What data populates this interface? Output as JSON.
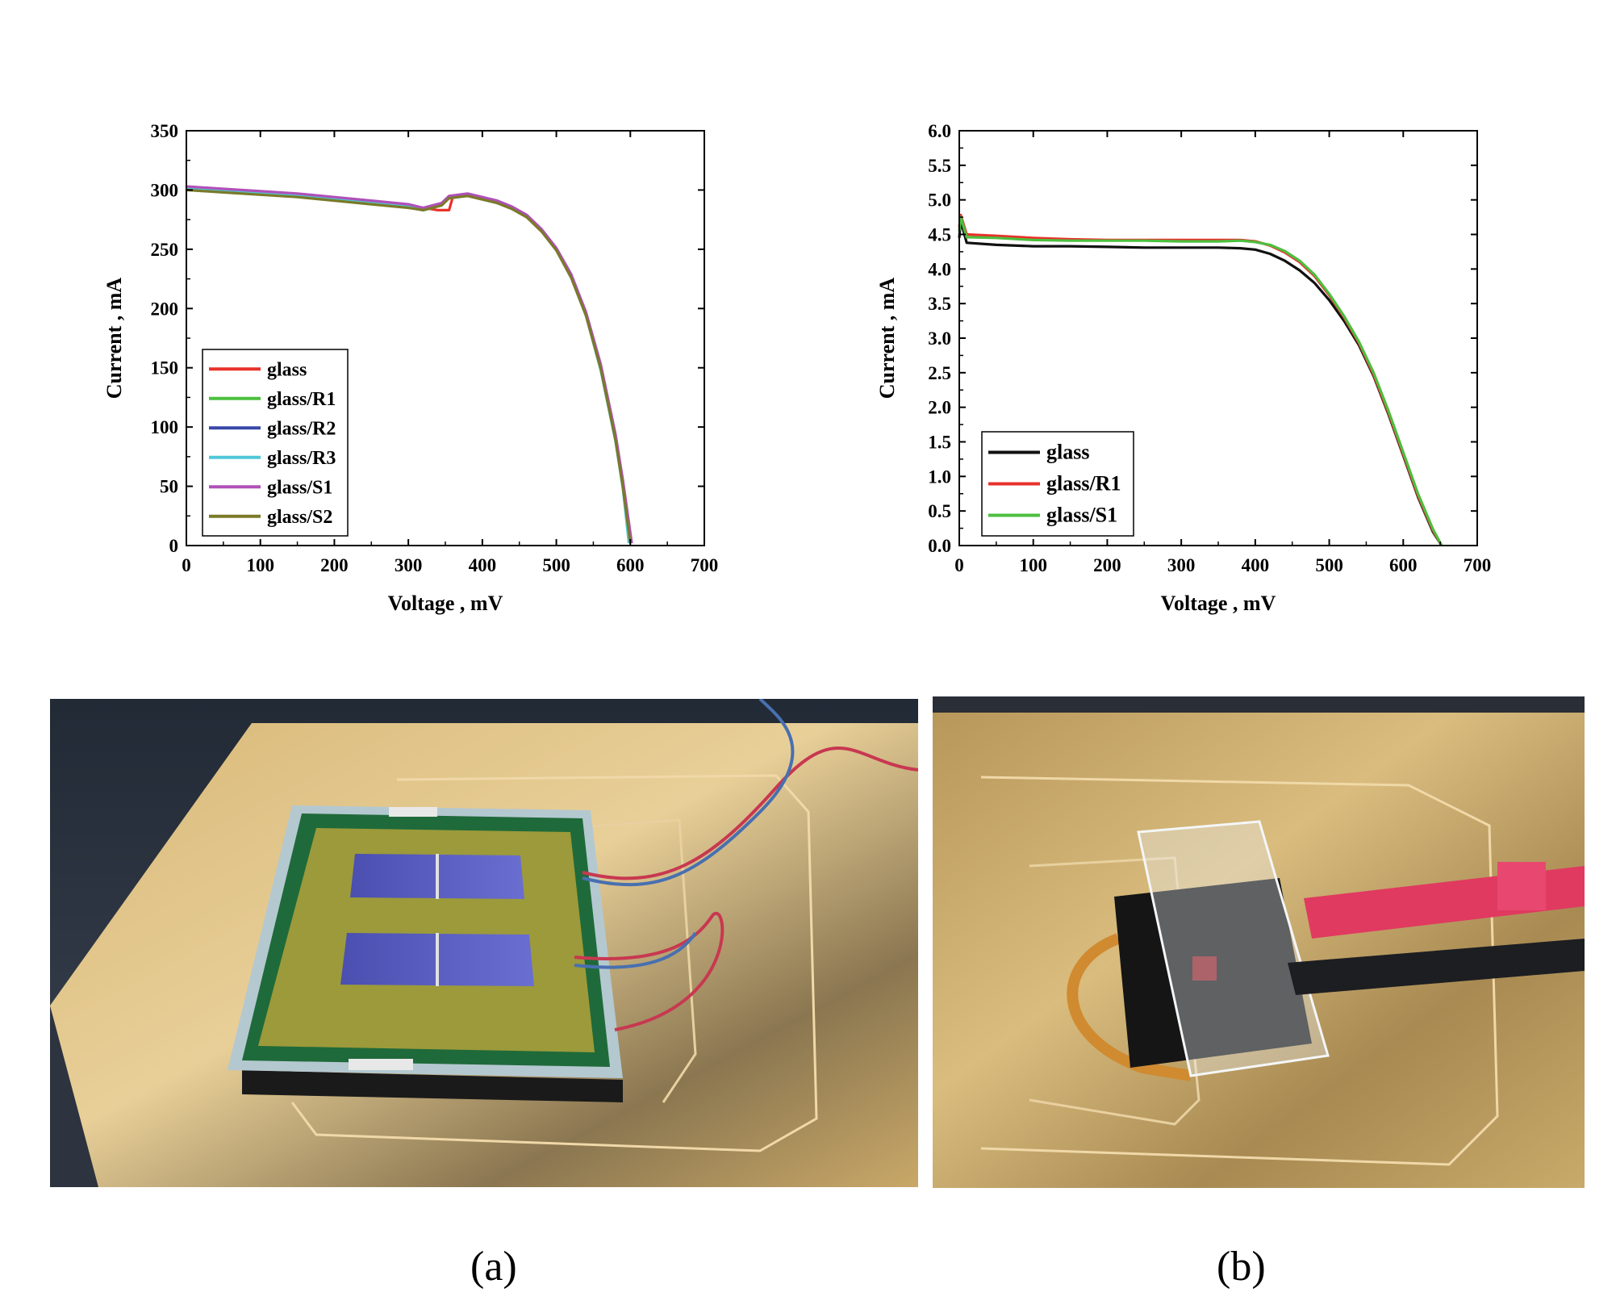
{
  "chart_data": [
    {
      "type": "line",
      "xlabel": "Voltage , mV",
      "ylabel": "Current , mA",
      "xlim": [
        0,
        700
      ],
      "ylim": [
        0,
        350
      ],
      "x_ticks": [
        "0",
        "100",
        "200",
        "300",
        "400",
        "500",
        "600",
        "700"
      ],
      "y_ticks": [
        "0",
        "50",
        "100",
        "150",
        "200",
        "250",
        "300",
        "350"
      ],
      "grid": false,
      "legend_position": "bottom-left",
      "series": [
        {
          "name": "glass",
          "color": "#e8312a",
          "x": [
            0,
            50,
            100,
            150,
            200,
            250,
            300,
            340,
            355,
            360,
            380,
            400,
            420,
            440,
            460,
            480,
            500,
            520,
            540,
            560,
            580,
            590,
            600
          ],
          "y": [
            301,
            300,
            298,
            296,
            293,
            290,
            287,
            283,
            283,
            294,
            296,
            293,
            290,
            285,
            278,
            266,
            250,
            227,
            195,
            150,
            90,
            50,
            2
          ]
        },
        {
          "name": "glass/R1",
          "color": "#4cbf3f",
          "x": [
            0,
            50,
            100,
            150,
            200,
            250,
            300,
            320,
            345,
            355,
            380,
            400,
            420,
            440,
            460,
            480,
            500,
            520,
            540,
            560,
            580,
            590,
            600
          ],
          "y": [
            300,
            299,
            297,
            295,
            292,
            289,
            286,
            283,
            287,
            294,
            296,
            293,
            290,
            285,
            278,
            266,
            250,
            227,
            195,
            150,
            90,
            50,
            2
          ]
        },
        {
          "name": "glass/R2",
          "color": "#3848a8",
          "x": [
            0,
            50,
            100,
            150,
            200,
            250,
            300,
            320,
            345,
            355,
            380,
            400,
            420,
            440,
            460,
            480,
            500,
            520,
            540,
            560,
            580,
            590,
            600
          ],
          "y": [
            302,
            300,
            298,
            295,
            292,
            289,
            286,
            284,
            288,
            294,
            296,
            293,
            290,
            285,
            278,
            266,
            250,
            227,
            195,
            150,
            90,
            50,
            2
          ]
        },
        {
          "name": "glass/R3",
          "color": "#4ec8d8",
          "x": [
            0,
            50,
            100,
            150,
            200,
            250,
            300,
            320,
            345,
            355,
            380,
            400,
            420,
            440,
            460,
            480,
            500,
            520,
            540,
            560,
            580,
            590,
            598
          ],
          "y": [
            301,
            300,
            298,
            295,
            292,
            289,
            286,
            283,
            287,
            294,
            296,
            293,
            290,
            285,
            278,
            266,
            250,
            227,
            194,
            148,
            88,
            48,
            2
          ]
        },
        {
          "name": "glass/S1",
          "color": "#b050b8",
          "x": [
            0,
            50,
            100,
            150,
            200,
            250,
            300,
            320,
            345,
            355,
            380,
            400,
            420,
            440,
            460,
            480,
            500,
            520,
            540,
            560,
            580,
            590,
            602
          ],
          "y": [
            303,
            301,
            299,
            297,
            294,
            291,
            288,
            285,
            289,
            295,
            297,
            294,
            291,
            286,
            279,
            267,
            251,
            229,
            197,
            153,
            94,
            55,
            2
          ]
        },
        {
          "name": "glass/S2",
          "color": "#7a7a28",
          "x": [
            0,
            50,
            100,
            150,
            200,
            250,
            300,
            320,
            345,
            355,
            380,
            400,
            420,
            440,
            460,
            480,
            500,
            520,
            540,
            560,
            580,
            590,
            600
          ],
          "y": [
            300,
            298,
            296,
            294,
            291,
            288,
            285,
            283,
            287,
            293,
            295,
            292,
            289,
            284,
            277,
            265,
            249,
            226,
            194,
            149,
            89,
            49,
            2
          ]
        }
      ]
    },
    {
      "type": "line",
      "xlabel": "Voltage , mV",
      "ylabel": "Current , mA",
      "xlim": [
        0,
        700
      ],
      "ylim": [
        0,
        6
      ],
      "x_ticks": [
        "0",
        "100",
        "200",
        "300",
        "400",
        "500",
        "600",
        "700"
      ],
      "y_ticks": [
        "0.0",
        "0.5",
        "1.0",
        "1.5",
        "2.0",
        "2.5",
        "3.0",
        "3.5",
        "4.0",
        "4.5",
        "5.0",
        "5.5",
        "6.0"
      ],
      "grid": false,
      "legend_position": "bottom-left",
      "series": [
        {
          "name": "glass",
          "color": "#111111",
          "x": [
            0,
            2,
            10,
            50,
            100,
            150,
            200,
            250,
            300,
            350,
            380,
            400,
            420,
            440,
            460,
            480,
            500,
            520,
            540,
            560,
            580,
            600,
            620,
            640,
            652
          ],
          "y": [
            4.45,
            4.7,
            4.38,
            4.35,
            4.33,
            4.33,
            4.32,
            4.31,
            4.31,
            4.31,
            4.3,
            4.28,
            4.22,
            4.12,
            3.98,
            3.8,
            3.55,
            3.25,
            2.9,
            2.45,
            1.9,
            1.3,
            0.7,
            0.2,
            0
          ]
        },
        {
          "name": "glass/R1",
          "color": "#e8312a",
          "x": [
            0,
            2,
            10,
            50,
            100,
            150,
            200,
            250,
            300,
            350,
            380,
            400,
            420,
            440,
            460,
            480,
            500,
            520,
            540,
            560,
            580,
            600,
            620,
            640,
            652
          ],
          "y": [
            4.6,
            4.78,
            4.5,
            4.48,
            4.45,
            4.43,
            4.42,
            4.42,
            4.42,
            4.42,
            4.42,
            4.4,
            4.34,
            4.24,
            4.1,
            3.9,
            3.62,
            3.3,
            2.93,
            2.47,
            1.92,
            1.32,
            0.72,
            0.22,
            0
          ]
        },
        {
          "name": "glass/S1",
          "color": "#4cbf3f",
          "x": [
            0,
            2,
            10,
            50,
            100,
            150,
            200,
            250,
            300,
            350,
            380,
            400,
            420,
            440,
            460,
            480,
            500,
            520,
            540,
            560,
            580,
            600,
            620,
            640,
            652
          ],
          "y": [
            4.55,
            4.75,
            4.46,
            4.45,
            4.42,
            4.41,
            4.41,
            4.41,
            4.4,
            4.4,
            4.41,
            4.39,
            4.35,
            4.26,
            4.12,
            3.92,
            3.64,
            3.32,
            2.95,
            2.5,
            1.95,
            1.35,
            0.75,
            0.24,
            0
          ]
        }
      ]
    }
  ],
  "captions": {
    "a": "(a)",
    "b": "(b)"
  }
}
